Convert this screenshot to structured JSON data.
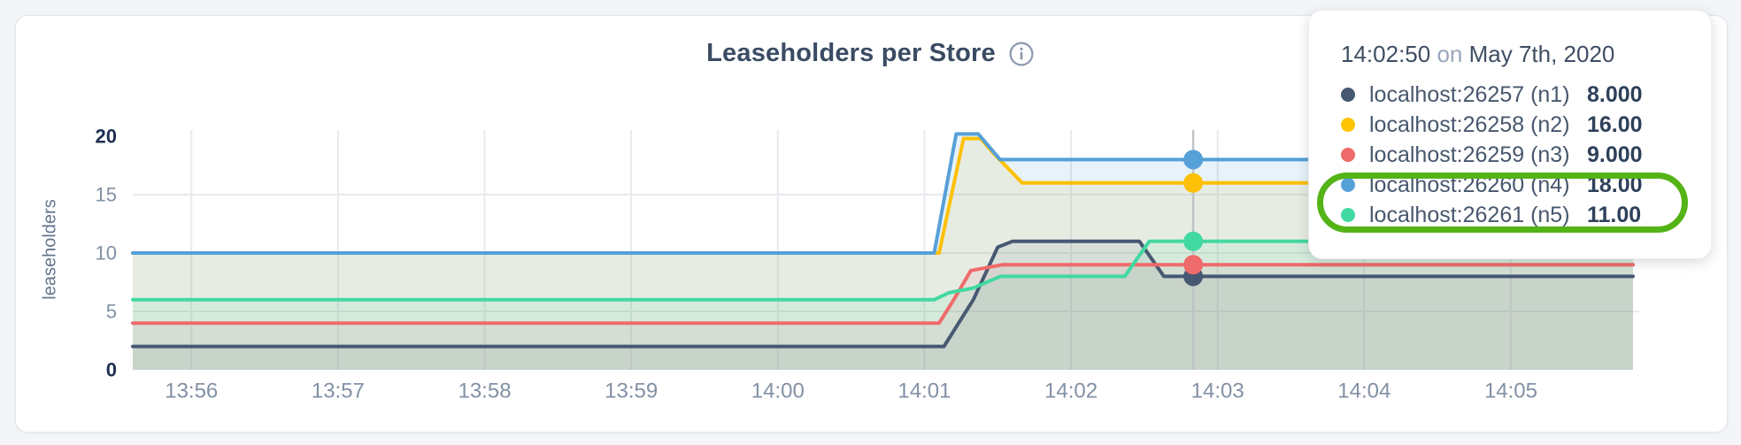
{
  "header": {
    "title": "Leaseholders per Store"
  },
  "chart_data": {
    "type": "area",
    "title": "Leaseholders per Store",
    "xlabel": "",
    "ylabel": "leaseholders",
    "ylim": [
      0,
      20
    ],
    "y_ticks": [
      0,
      5,
      10,
      15,
      20
    ],
    "y_gridlines": [
      5,
      10,
      15
    ],
    "grid": true,
    "legend_position": "floating-tooltip",
    "x_domain_seconds_after_13_55": [
      36,
      650
    ],
    "x_ticks": [
      {
        "t": 60,
        "label": "13:56"
      },
      {
        "t": 120,
        "label": "13:57"
      },
      {
        "t": 180,
        "label": "13:58"
      },
      {
        "t": 240,
        "label": "13:59"
      },
      {
        "t": 300,
        "label": "14:00"
      },
      {
        "t": 360,
        "label": "14:01"
      },
      {
        "t": 420,
        "label": "14:02"
      },
      {
        "t": 480,
        "label": "14:03"
      },
      {
        "t": 540,
        "label": "14:04"
      },
      {
        "t": 600,
        "label": "14:05"
      }
    ],
    "series": [
      {
        "name": "localhost:26257 (n1)",
        "color": "#475872",
        "fill": "rgba(71,88,114,0.10)",
        "points_t_v": [
          [
            36,
            2
          ],
          [
            368,
            2
          ],
          [
            380,
            6
          ],
          [
            390,
            10.5
          ],
          [
            396,
            11
          ],
          [
            448,
            11
          ],
          [
            458,
            8
          ],
          [
            650,
            8
          ]
        ]
      },
      {
        "name": "localhost:26258 (n2)",
        "color": "#fdc006",
        "fill": "rgba(253,192,6,0.10)",
        "points_t_v": [
          [
            36,
            10
          ],
          [
            366,
            10
          ],
          [
            376,
            19.8
          ],
          [
            383,
            19.8
          ],
          [
            388,
            18.6
          ],
          [
            400,
            16
          ],
          [
            650,
            16
          ]
        ]
      },
      {
        "name": "localhost:26259 (n3)",
        "color": "#ef6a6a",
        "fill": "rgba(239,106,106,0.11)",
        "points_t_v": [
          [
            36,
            4
          ],
          [
            366,
            4
          ],
          [
            372,
            6
          ],
          [
            379,
            8.5
          ],
          [
            392,
            9
          ],
          [
            650,
            9
          ]
        ]
      },
      {
        "name": "localhost:26260 (n4)",
        "color": "#56a0d8",
        "fill": "rgba(86,160,216,0.14)",
        "points_t_v": [
          [
            36,
            10
          ],
          [
            364,
            10
          ],
          [
            373,
            20.2
          ],
          [
            382,
            20.2
          ],
          [
            391,
            18
          ],
          [
            650,
            18
          ]
        ]
      },
      {
        "name": "localhost:26261 (n5)",
        "color": "#42d8a2",
        "fill": "rgba(66,216,162,0.10)",
        "points_t_v": [
          [
            36,
            6
          ],
          [
            364,
            6
          ],
          [
            370,
            6.6
          ],
          [
            380,
            7
          ],
          [
            391,
            8
          ],
          [
            442,
            8
          ],
          [
            452,
            11
          ],
          [
            650,
            11
          ]
        ]
      }
    ],
    "hover": {
      "t": 470,
      "time": "14:02:50",
      "values": [
        8,
        16,
        9,
        18,
        11
      ]
    }
  },
  "tooltip": {
    "time": "14:02:50",
    "conjunction": "on",
    "date": "May 7th, 2020",
    "rows": [
      {
        "label": "localhost:26257 (n1)",
        "value": "8.000",
        "color": "#475872"
      },
      {
        "label": "localhost:26258 (n2)",
        "value": "16.00",
        "color": "#ffc400"
      },
      {
        "label": "localhost:26259 (n3)",
        "value": "9.000",
        "color": "#ef6a6a"
      },
      {
        "label": "localhost:26260 (n4)",
        "value": "18.00",
        "color": "#56a0d8"
      },
      {
        "label": "localhost:26261 (n5)",
        "value": "11.00",
        "color": "#42d8a2"
      }
    ]
  },
  "annotation": {
    "shape": "stadium-outline",
    "color": "#53b317",
    "circled_rows": [
      "localhost:26260 (n4)",
      "localhost:26261 (n5)"
    ]
  },
  "icons": {
    "info": "info-icon"
  }
}
